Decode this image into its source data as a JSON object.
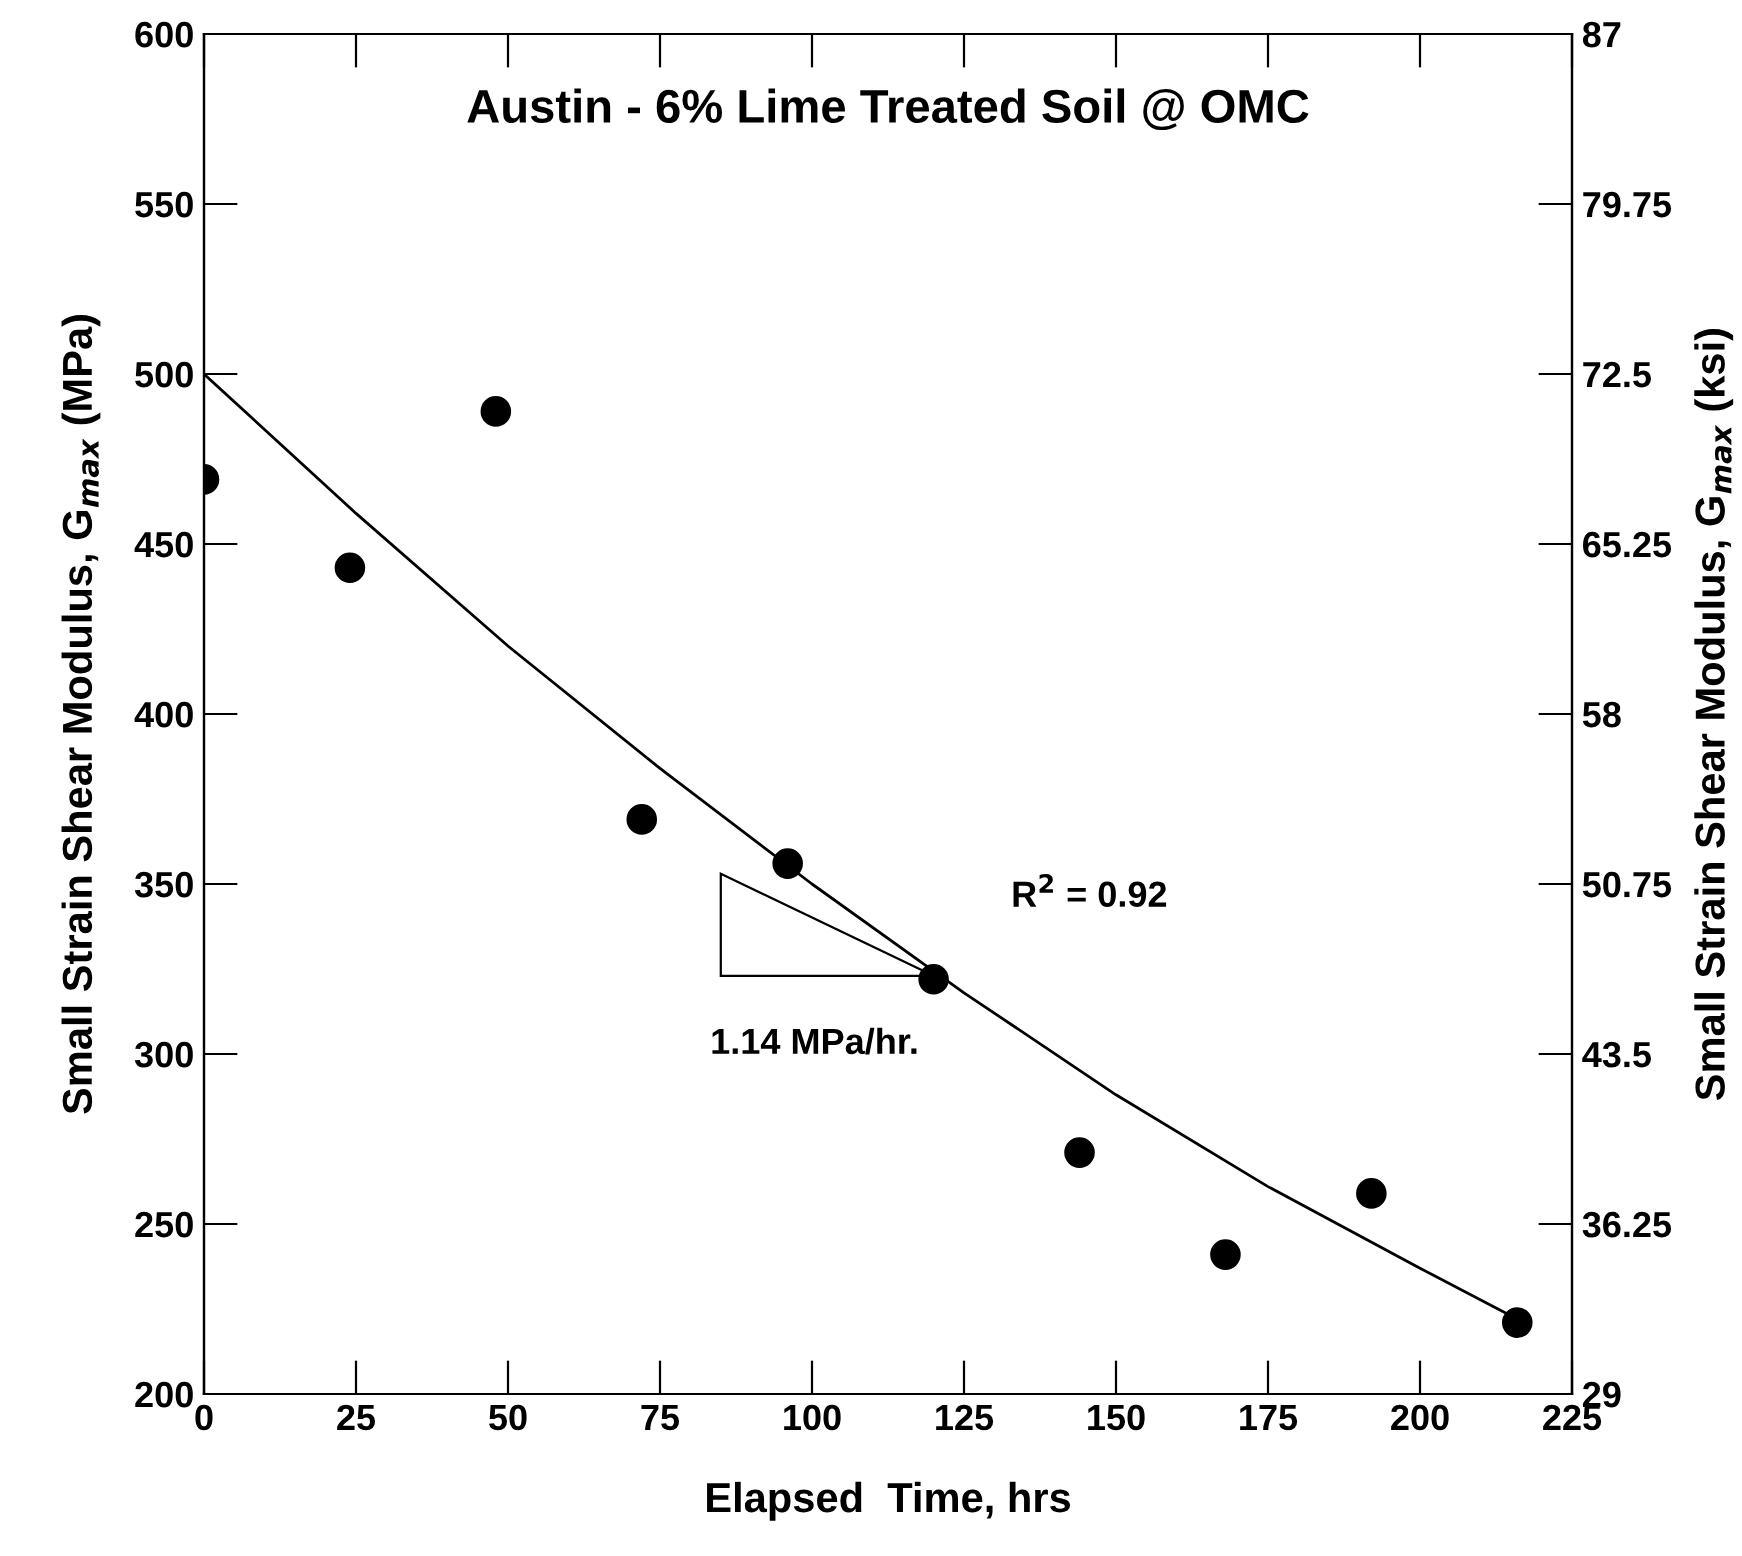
{
  "chart_data": {
    "type": "scatter",
    "title": "Austin - 6% Lime Treated Soil @ OMC",
    "xlabel": "Elapsed  Time, hrs",
    "ylabel": "Small Strain Shear Modulus, G$_{max}$ (MPa)",
    "y2label": "Small Strain Shear Modulus, G$_{max}$ (ksi)",
    "series": [
      {
        "color": "#000000",
        "marker": "circle",
        "x": [
          0,
          24,
          48,
          72,
          96,
          120,
          144,
          168,
          192,
          216
        ],
        "values": [
          469,
          443,
          489,
          369,
          356,
          322,
          271,
          241,
          259,
          221
        ]
      },
      {
        "type": "line",
        "color": "#000000",
        "marker": "none",
        "x": [
          0,
          25,
          50,
          75,
          100,
          125,
          150,
          175,
          200,
          216
        ],
        "values": [
          500,
          459,
          420,
          384,
          350,
          318,
          288,
          261,
          237,
          222
        ]
      }
    ],
    "annotations": [
      "R$^{2}$ = 0.92",
      "1.14 MPa/hr."
    ],
    "xlim": [
      0,
      225
    ],
    "xticks": [
      0,
      25,
      50,
      75,
      100,
      125,
      150,
      175,
      200,
      225
    ],
    "ylim": [
      200,
      600
    ],
    "yticks": [
      200,
      250,
      300,
      350,
      400,
      450,
      500,
      550,
      600
    ],
    "y2lim": [
      29,
      87
    ],
    "y2ticks": [
      29,
      36.25,
      43.5,
      50.75,
      58,
      65.25,
      72.5,
      79.75,
      87
    ],
    "grid": false,
    "legend": false
  }
}
